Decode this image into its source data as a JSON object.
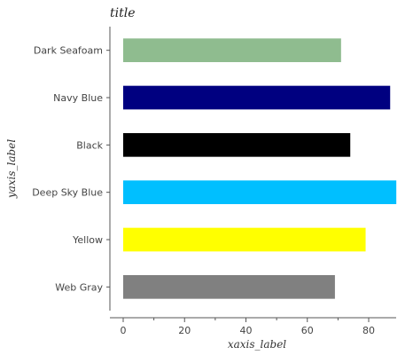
{
  "chart_data": {
    "type": "bar",
    "orientation": "horizontal",
    "title": "title",
    "xlabel": "xaxis_label",
    "ylabel": "yaxis_label",
    "categories": [
      "Web Gray",
      "Yellow",
      "Deep Sky Blue",
      "Black",
      "Navy Blue",
      "Dark Seafoam"
    ],
    "values": [
      69,
      79,
      89,
      74,
      87,
      71
    ],
    "colors": [
      "#808080",
      "#ffff00",
      "#00bfff",
      "#000000",
      "#000080",
      "#8fbc8f"
    ],
    "xlim": [
      0,
      89
    ],
    "xticks": [
      0,
      20,
      40,
      60,
      80
    ],
    "grid": false
  }
}
